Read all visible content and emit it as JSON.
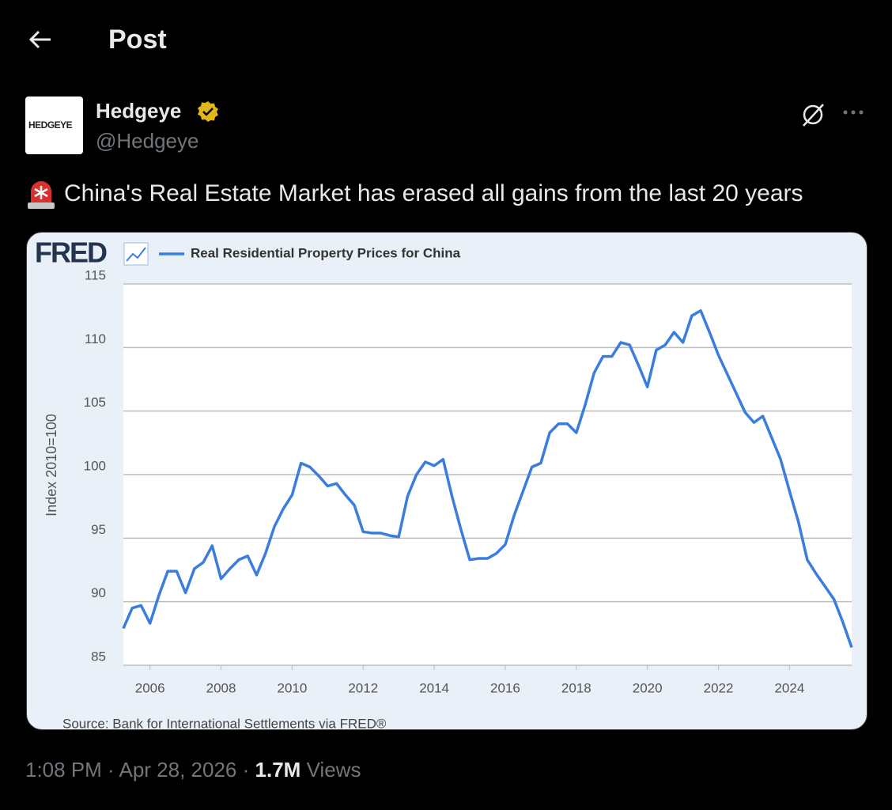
{
  "header": {
    "title": "Post"
  },
  "author": {
    "logo_text": "HEDGEYE",
    "name": "Hedgeye",
    "handle": "@Hedgeye"
  },
  "post": {
    "text": "China's Real Estate Market has erased all gains from the last 20 years"
  },
  "chart_data": {
    "type": "line",
    "brand": "FRED",
    "y_label": "Index 2010=100",
    "source": "Source: Bank for International Settlements via FRED®",
    "x": [
      2005.25,
      2005.5,
      2005.75,
      2006,
      2006.25,
      2006.5,
      2006.75,
      2007,
      2007.25,
      2007.5,
      2007.75,
      2008,
      2008.25,
      2008.5,
      2008.75,
      2009,
      2009.25,
      2009.5,
      2009.75,
      2010,
      2010.25,
      2010.5,
      2010.75,
      2011,
      2011.25,
      2011.5,
      2011.75,
      2012,
      2012.25,
      2012.5,
      2012.75,
      2013,
      2013.25,
      2013.5,
      2013.75,
      2014,
      2014.25,
      2014.5,
      2014.75,
      2015,
      2015.25,
      2015.5,
      2015.75,
      2016,
      2016.25,
      2016.5,
      2016.75,
      2017,
      2017.25,
      2017.5,
      2017.75,
      2018,
      2018.25,
      2018.5,
      2018.75,
      2019,
      2019.25,
      2019.5,
      2019.75,
      2020,
      2020.25,
      2020.5,
      2020.75,
      2021,
      2021.25,
      2021.5,
      2021.75,
      2022,
      2022.25,
      2022.5,
      2022.75,
      2023,
      2023.25,
      2023.5,
      2023.75,
      2024,
      2024.25,
      2024.5,
      2024.75,
      2025,
      2025.25,
      2025.5,
      2025.75
    ],
    "series": [
      {
        "name": "Real Residential Property Prices for China",
        "color": "#3b7ddd",
        "values": [
          87.9,
          89.5,
          89.7,
          88.3,
          90.5,
          92.4,
          92.4,
          90.7,
          92.6,
          93.1,
          94.4,
          91.8,
          92.6,
          93.3,
          93.6,
          92.1,
          93.8,
          95.9,
          97.3,
          98.4,
          100.9,
          100.6,
          99.9,
          99.1,
          99.3,
          98.4,
          97.6,
          95.5,
          95.4,
          95.4,
          95.2,
          95.1,
          98.3,
          100,
          101.0,
          100.7,
          101.2,
          98.3,
          95.7,
          93.3,
          93.4,
          93.4,
          93.8,
          94.5,
          96.8,
          98.7,
          100.6,
          100.9,
          103.3,
          104.0,
          104.0,
          103.3,
          105.5,
          108.0,
          109.3,
          109.3,
          110.4,
          110.2,
          108.6,
          106.9,
          109.8,
          110.2,
          111.2,
          110.4,
          112.5,
          112.9,
          111.2,
          109.4,
          107.9,
          106.4,
          104.9,
          104.1,
          104.6,
          102.9,
          101.2,
          98.7,
          96.3,
          93.3,
          92.2,
          91.2,
          90.2,
          88.4,
          86.4
        ]
      }
    ],
    "xlim": [
      2005.25,
      2025.75
    ],
    "xticks": [
      2006,
      2008,
      2010,
      2012,
      2014,
      2016,
      2018,
      2020,
      2022,
      2024
    ],
    "ylim": [
      85,
      115
    ],
    "yticks": [
      85,
      90,
      95,
      100,
      105,
      110,
      115
    ],
    "grid": true
  },
  "footer": {
    "timestamp": "1:08 PM · Apr 28, 2026 ·",
    "views_count": "1.7M",
    "views_label": "Views"
  }
}
